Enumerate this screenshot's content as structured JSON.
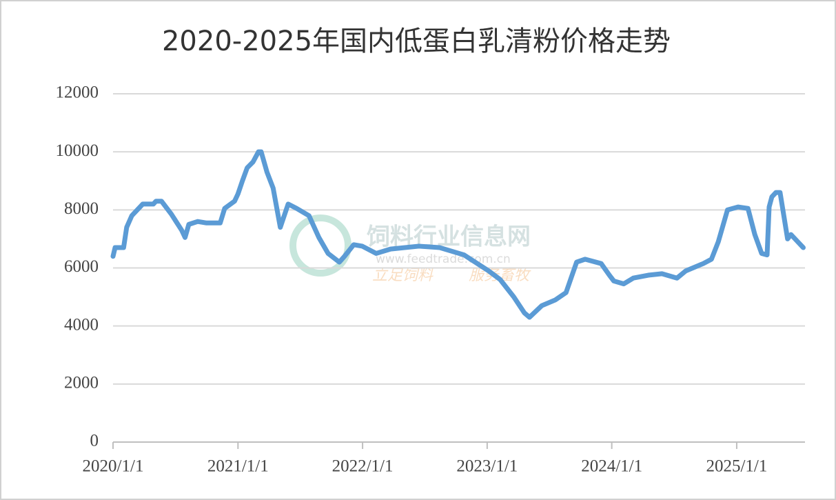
{
  "chart_data": {
    "type": "line",
    "title": "2020-2025年国内低蛋白乳清粉价格走势",
    "x": [
      "2020/1/1",
      "2020/1/7",
      "2020/2/1",
      "2020/2/10",
      "2020/2/25",
      "2020/3/28",
      "2020/4/28",
      "2020/5/6",
      "2020/5/22",
      "2020/6/20",
      "2020/7/20",
      "2020/7/30",
      "2020/8/10",
      "2020/9/5",
      "2020/10/1",
      "2020/11/10",
      "2020/11/23",
      "2020/12/22",
      "2021/1/1",
      "2021/1/14",
      "2021/1/28",
      "2021/2/14",
      "2021/3/2",
      "2021/3/10",
      "2021/3/27",
      "2021/4/14",
      "2021/5/5",
      "2021/5/28",
      "2021/6/22",
      "2021/7/28",
      "2021/8/26",
      "2021/9/22",
      "2021/10/25",
      "2021/11/9",
      "2021/12/6",
      "2021/12/31",
      "2022/2/10",
      "2022/3/24",
      "2022/6/15",
      "2022/8/15",
      "2022/10/25",
      "2023/1/5",
      "2023/2/8",
      "2023/3/20",
      "2023/4/20",
      "2023/5/5",
      "2023/6/10",
      "2023/7/20",
      "2023/8/20",
      "2023/9/20",
      "2023/10/15",
      "2023/12/1",
      "2023/12/25",
      "2024/1/7",
      "2024/2/5",
      "2024/3/4",
      "2024/4/17",
      "2024/5/27",
      "2024/7/10",
      "2024/8/5",
      "2024/9/25",
      "2024/10/19",
      "2024/11/8",
      "2024/12/5",
      "2025/1/5",
      "2025/2/3",
      "2025/2/23",
      "2025/3/15",
      "2025/3/31",
      "2025/4/6",
      "2025/4/14",
      "2025/4/26",
      "2025/5/8",
      "2025/5/30",
      "2025/6/9",
      "2025/7/3",
      "2025/7/15"
    ],
    "series": [
      {
        "name": "低蛋白乳清粉",
        "color": "#5b9bd5",
        "values": [
          6400,
          6700,
          6700,
          7400,
          7800,
          8200,
          8200,
          8300,
          8300,
          7850,
          7300,
          7050,
          7500,
          7600,
          7550,
          7550,
          8050,
          8300,
          8550,
          9000,
          9450,
          9650,
          10000,
          10000,
          9300,
          8750,
          7400,
          8200,
          8050,
          7800,
          7050,
          6500,
          6200,
          6400,
          6800,
          6750,
          6500,
          6650,
          6750,
          6700,
          6450,
          5900,
          5600,
          5000,
          4450,
          4300,
          4700,
          4900,
          5150,
          6200,
          6300,
          6150,
          5750,
          5550,
          5450,
          5650,
          5750,
          5800,
          5650,
          5900,
          6150,
          6300,
          6900,
          8000,
          8100,
          8050,
          7150,
          6500,
          6450,
          8100,
          8450,
          8600,
          8600,
          7000,
          7150,
          6850,
          6700
        ]
      }
    ],
    "xlim": [
      "2020/1/1",
      "2025/7/20"
    ],
    "xticks": [
      "2020/1/1",
      "2021/1/1",
      "2022/1/1",
      "2023/1/1",
      "2024/1/1",
      "2025/1/1"
    ],
    "ylim": [
      0,
      12000
    ],
    "yticks": [
      0,
      2000,
      4000,
      6000,
      8000,
      10000,
      12000
    ],
    "grid": true,
    "watermark": {
      "name": "饲料行业信息网",
      "url": "www.feedtrade.com.cn",
      "slogan_left": "立足饲料",
      "slogan_right": "服务畜牧"
    }
  }
}
